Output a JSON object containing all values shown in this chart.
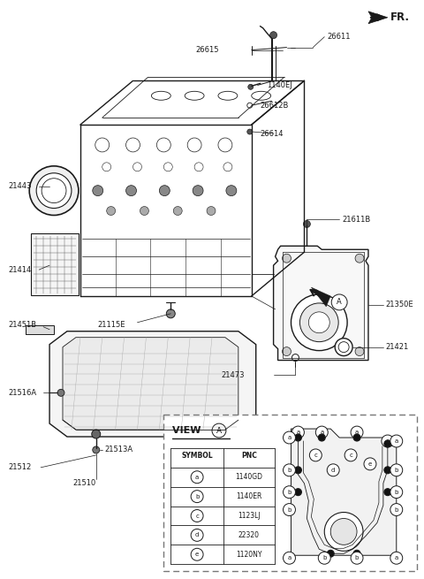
{
  "bg_color": "#ffffff",
  "fig_width": 4.8,
  "fig_height": 6.55,
  "dpi": 100,
  "line_color": "#1a1a1a",
  "label_fontsize": 6.0,
  "table_data": {
    "rows": [
      [
        "a",
        "1140GD"
      ],
      [
        "b",
        "1140ER"
      ],
      [
        "c",
        "1123LJ"
      ],
      [
        "d",
        "22320"
      ],
      [
        "e",
        "1120NY"
      ]
    ]
  }
}
